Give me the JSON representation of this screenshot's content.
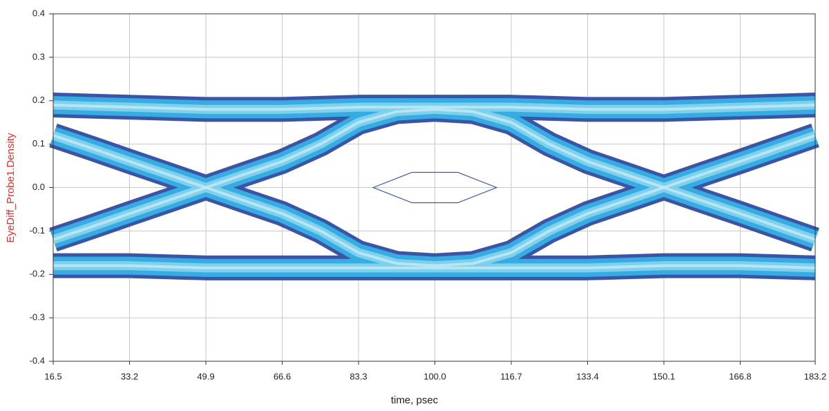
{
  "chart_data": {
    "type": "eye",
    "x_label": "time, psec",
    "y_label": "EyeDiff_Probe1.Density",
    "xlim": [
      16.5,
      183.2
    ],
    "xticks": [
      16.5,
      33.2,
      49.9,
      66.6,
      83.3,
      {
        "value": 100,
        "label": "100.0"
      },
      116.7,
      133.4,
      150.1,
      166.8,
      183.2
    ],
    "ylim": [
      -0.4,
      0.4
    ],
    "yticks": [
      0.4,
      0.3,
      0.2,
      0.1,
      {
        "value": 0,
        "label": "0.0"
      },
      -0.1,
      -0.2,
      -0.3,
      -0.4
    ],
    "grid": true,
    "band_colors": [
      "#3b55a6",
      "#36ace2",
      "#7fd0ee",
      "#c6ebf4"
    ],
    "traces": [
      {
        "x": [
          16.5,
          33.2,
          49.9,
          66.6,
          83.3,
          100,
          116.7,
          133.4,
          150.1,
          166.8,
          183.2
        ],
        "y": [
          0.19,
          0.185,
          0.18,
          0.18,
          0.185,
          0.185,
          0.185,
          0.18,
          0.18,
          0.185,
          0.19
        ]
      },
      {
        "x": [
          16.5,
          33.2,
          49.9,
          66.6,
          83.3,
          100,
          116.7,
          133.4,
          150.1,
          166.8,
          183.2
        ],
        "y": [
          -0.18,
          -0.18,
          -0.185,
          -0.185,
          -0.185,
          -0.185,
          -0.185,
          -0.185,
          -0.18,
          -0.18,
          -0.185
        ]
      },
      {
        "x": [
          16.5,
          25,
          33.2,
          41.6,
          49.9,
          58.2,
          66.6,
          75,
          83.3,
          91.7,
          100
        ],
        "y": [
          0.12,
          0.09,
          0.06,
          0.03,
          0,
          -0.03,
          -0.06,
          -0.1,
          -0.15,
          -0.175,
          -0.18
        ]
      },
      {
        "x": [
          16.5,
          25,
          33.2,
          41.6,
          49.9,
          58.2,
          66.6,
          75,
          83.3,
          91.7,
          100
        ],
        "y": [
          -0.12,
          -0.09,
          -0.06,
          -0.03,
          0,
          0.03,
          0.06,
          0.1,
          0.15,
          0.175,
          0.18
        ]
      },
      {
        "x": [
          100,
          108.3,
          116.7,
          125,
          133.4,
          141.8,
          150.1,
          158.4,
          166.8,
          175,
          183.2
        ],
        "y": [
          0.18,
          0.175,
          0.15,
          0.1,
          0.06,
          0.03,
          0,
          -0.03,
          -0.06,
          -0.09,
          -0.12
        ]
      },
      {
        "x": [
          100,
          108.3,
          116.7,
          125,
          133.4,
          141.8,
          150.1,
          158.4,
          166.8,
          175,
          183.2
        ],
        "y": [
          -0.18,
          -0.175,
          -0.15,
          -0.1,
          -0.06,
          -0.03,
          0,
          0.03,
          0.06,
          0.09,
          0.12
        ]
      }
    ],
    "mask": {
      "color": "#3b55a6",
      "x": [
        86.5,
        95,
        105,
        113.5,
        105,
        95
      ],
      "y": [
        0,
        0.035,
        0.035,
        0,
        -0.035,
        -0.035
      ]
    }
  }
}
